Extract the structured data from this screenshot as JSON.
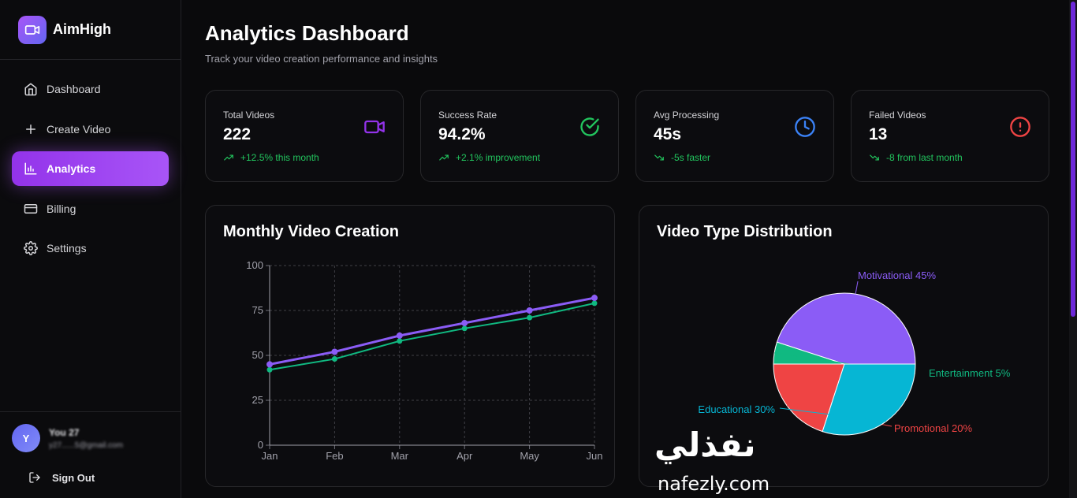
{
  "brand": {
    "name": "AimHigh"
  },
  "sidebar": {
    "items": [
      {
        "label": "Dashboard",
        "icon": "home-icon"
      },
      {
        "label": "Create Video",
        "icon": "plus-icon"
      },
      {
        "label": "Analytics",
        "icon": "bar-chart-icon",
        "active": true
      },
      {
        "label": "Billing",
        "icon": "credit-card-icon"
      },
      {
        "label": "Settings",
        "icon": "gear-icon"
      }
    ]
  },
  "user": {
    "initial": "Y",
    "name": "You 27",
    "email": "y27......5@gmail.com"
  },
  "signout": {
    "label": "Sign Out"
  },
  "header": {
    "title": "Analytics Dashboard",
    "subtitle": "Track your video creation performance and insights"
  },
  "stats": [
    {
      "label": "Total Videos",
      "value": "222",
      "trend": "+12.5% this month",
      "icon": "video-icon",
      "color": "#9333ea"
    },
    {
      "label": "Success Rate",
      "value": "94.2%",
      "trend": "+2.1% improvement",
      "icon": "check-circle-icon",
      "color": "#22c55e"
    },
    {
      "label": "Avg Processing",
      "value": "45s",
      "trend": "-5s faster",
      "icon": "clock-icon",
      "color": "#3b82f6"
    },
    {
      "label": "Failed Videos",
      "value": "13",
      "trend": "-8 from last month",
      "icon": "alert-circle-icon",
      "color": "#ef4444"
    }
  ],
  "charts": {
    "line_title": "Monthly Video Creation",
    "pie_title": "Video Type Distribution"
  },
  "chart_data": [
    {
      "type": "line",
      "title": "Monthly Video Creation",
      "categories": [
        "Jan",
        "Feb",
        "Mar",
        "Apr",
        "May",
        "Jun"
      ],
      "ylim": [
        0,
        100
      ],
      "yticks": [
        0,
        25,
        50,
        75,
        100
      ],
      "grid": true,
      "series": [
        {
          "values": [
            45,
            52,
            61,
            68,
            75,
            82
          ],
          "color": "#8b5cf6"
        },
        {
          "values": [
            42,
            48,
            58,
            65,
            71,
            79
          ],
          "color": "#10b981"
        }
      ]
    },
    {
      "type": "pie",
      "title": "Video Type Distribution",
      "slices": [
        {
          "label": "Motivational 45%",
          "value": 45,
          "color": "#8b5cf6"
        },
        {
          "label": "Entertainment 5%",
          "value": 5,
          "color": "#10b981"
        },
        {
          "label": "Promotional 20%",
          "value": 20,
          "color": "#ef4444"
        },
        {
          "label": "Educational 30%",
          "value": 30,
          "color": "#06b6d4"
        }
      ]
    }
  ],
  "watermark": {
    "arabic": "نفذلي",
    "latin": "nafezly.com"
  }
}
